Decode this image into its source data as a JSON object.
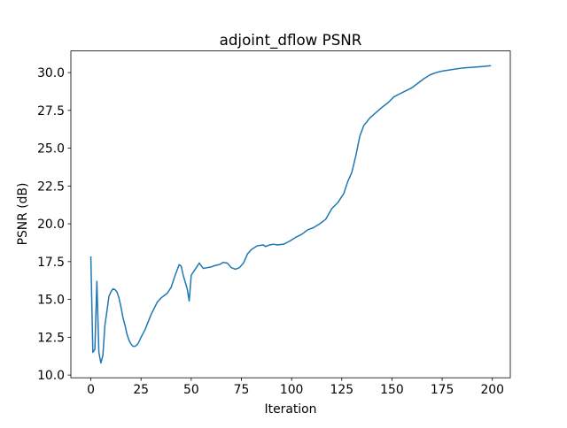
{
  "chart_data": {
    "type": "line",
    "title": "adjoint_dflow PSNR",
    "x_label": "Iteration",
    "y_label": "PSNR (dB)",
    "xlim": [
      -9.95,
      208.95
    ],
    "ylim": [
      9.82,
      31.43
    ],
    "xticks": [
      0,
      25,
      50,
      75,
      100,
      125,
      150,
      175,
      200
    ],
    "yticks": [
      {
        "value": 10,
        "label": "10.0"
      },
      12.5,
      {
        "value": 15,
        "label": "15.0"
      },
      17.5,
      {
        "value": 20,
        "label": "20.0"
      },
      22.5,
      {
        "value": 25,
        "label": "25.0"
      },
      27.5,
      {
        "value": 30,
        "label": "30.0"
      }
    ],
    "grid": false,
    "series": [
      {
        "color": "#1f77b4",
        "x": [
          0,
          1,
          2,
          3,
          4,
          5,
          6,
          7,
          8,
          9,
          10,
          11,
          12,
          13,
          14,
          15,
          16,
          17,
          18,
          19,
          20,
          21,
          22,
          23,
          24,
          25,
          27,
          30,
          33,
          35,
          38,
          40,
          42,
          44,
          45,
          46,
          48,
          49,
          50,
          52,
          54,
          56,
          58,
          60,
          62,
          64,
          66,
          68,
          70,
          72,
          74,
          76,
          78,
          80,
          83,
          86,
          87,
          89,
          91,
          93,
          96,
          99,
          102,
          105,
          108,
          111,
          114,
          117,
          120,
          123,
          126,
          128,
          130,
          132,
          134,
          136,
          139,
          142,
          145,
          148,
          151,
          154,
          157,
          160,
          163,
          166,
          169,
          172,
          175,
          180,
          185,
          190,
          195,
          199
        ],
        "values": [
          17.8,
          11.5,
          11.7,
          16.2,
          11.5,
          10.8,
          11.3,
          13.3,
          14.2,
          15.2,
          15.5,
          15.7,
          15.65,
          15.5,
          15.1,
          14.5,
          13.8,
          13.3,
          12.7,
          12.3,
          12.05,
          11.9,
          11.9,
          12.0,
          12.2,
          12.5,
          13.0,
          14.0,
          14.8,
          15.1,
          15.4,
          15.8,
          16.6,
          17.3,
          17.2,
          16.6,
          15.7,
          14.9,
          16.6,
          17.0,
          17.4,
          17.05,
          17.1,
          17.15,
          17.25,
          17.3,
          17.45,
          17.4,
          17.1,
          17.0,
          17.1,
          17.4,
          18.0,
          18.3,
          18.55,
          18.6,
          18.5,
          18.6,
          18.65,
          18.6,
          18.65,
          18.85,
          19.1,
          19.3,
          19.6,
          19.75,
          20.0,
          20.3,
          21.0,
          21.4,
          22.0,
          22.8,
          23.4,
          24.5,
          25.8,
          26.5,
          27.0,
          27.35,
          27.7,
          28.0,
          28.4,
          28.6,
          28.8,
          29.0,
          29.3,
          29.6,
          29.85,
          30.0,
          30.1,
          30.2,
          30.3,
          30.35,
          30.4,
          30.45
        ]
      }
    ]
  }
}
